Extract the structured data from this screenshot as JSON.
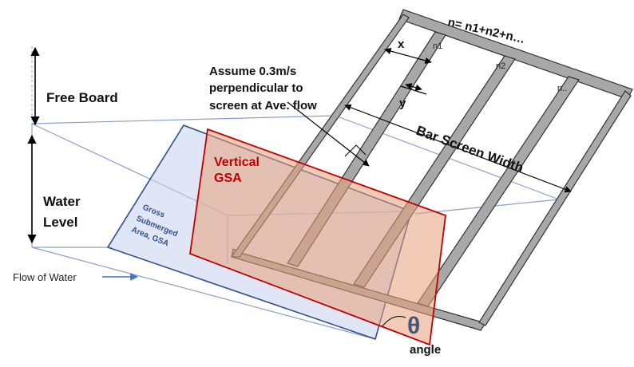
{
  "labels": {
    "formula": "n= n1+n2+n…",
    "x": "x",
    "y": "y",
    "n1": "n1",
    "n2": "n2",
    "n_dots": "n..",
    "assume_line1": "Assume 0.3m/s",
    "assume_line2": "perpendicular to",
    "assume_line3": "screen at Ave. flow",
    "free_board": "Free Board",
    "water_line1": "Water",
    "water_line2": "Level",
    "bar_screen_width": "Bar Screen Width",
    "vertical_line1": "Vertical",
    "vertical_line2": "GSA",
    "gross_line1": "Gross",
    "gross_line2": "Submerged",
    "gross_line3": "Area, GSA",
    "flow_of_water": "Flow of Water",
    "theta": "θ",
    "angle": "angle"
  },
  "colors": {
    "bar_fill": "#a8a8a8",
    "bar_stroke": "#333333",
    "vertical_gsa_stroke": "#c00000",
    "vertical_gsa_fill": "#e8a07c",
    "gross_gsa_stroke": "#2f4f8a",
    "gross_gsa_fill": "#c8d2ee",
    "channel_stroke": "#8aa0c8",
    "flow_arrow": "#4472c4"
  }
}
